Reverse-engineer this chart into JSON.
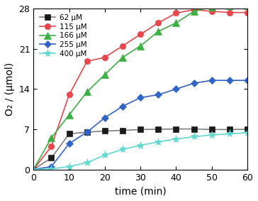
{
  "title": "",
  "xlabel": "time (min)",
  "ylabel": "O₂ / (μmol)",
  "xlim": [
    0,
    60
  ],
  "ylim": [
    0,
    28
  ],
  "yticks": [
    0,
    7,
    14,
    21,
    28
  ],
  "xticks": [
    0,
    10,
    20,
    30,
    40,
    50,
    60
  ],
  "series": [
    {
      "label": "62 μM",
      "color": "#808080",
      "marker": "s",
      "markercolor": "#1a1a1a",
      "x": [
        0,
        5,
        10,
        15,
        20,
        25,
        30,
        35,
        40,
        45,
        50,
        55,
        60
      ],
      "y": [
        0,
        2.0,
        6.2,
        6.5,
        6.7,
        6.8,
        6.95,
        7.0,
        7.05,
        7.05,
        6.95,
        6.95,
        7.0
      ]
    },
    {
      "label": "115 μM",
      "color": "#e8474c",
      "marker": "o",
      "markercolor": "#e8474c",
      "x": [
        0,
        5,
        10,
        15,
        20,
        25,
        30,
        35,
        40,
        45,
        50,
        55,
        60
      ],
      "y": [
        0,
        4.0,
        13.0,
        18.8,
        19.5,
        21.5,
        23.5,
        25.5,
        27.2,
        27.8,
        27.5,
        27.3,
        27.3
      ]
    },
    {
      "label": "166 μM",
      "color": "#3cb043",
      "marker": "^",
      "markercolor": "#3cb043",
      "x": [
        0,
        5,
        10,
        15,
        20,
        25,
        30,
        35,
        40,
        45,
        50,
        55,
        60
      ],
      "y": [
        0,
        5.5,
        9.5,
        13.5,
        16.5,
        19.5,
        21.5,
        24.0,
        25.5,
        27.5,
        28.3,
        28.5,
        28.5
      ]
    },
    {
      "label": "255 μM",
      "color": "#3264c8",
      "marker": "D",
      "markercolor": "#3264c8",
      "x": [
        0,
        5,
        10,
        15,
        20,
        25,
        30,
        35,
        40,
        45,
        50,
        55,
        60
      ],
      "y": [
        0,
        0.5,
        4.5,
        6.5,
        9.0,
        11.0,
        12.5,
        13.0,
        14.0,
        15.0,
        15.5,
        15.5,
        15.5
      ]
    },
    {
      "label": "400 μM",
      "color": "#60d8d0",
      "marker": "*",
      "markercolor": "#60d8d0",
      "x": [
        0,
        5,
        10,
        15,
        20,
        25,
        30,
        35,
        40,
        45,
        50,
        55,
        60
      ],
      "y": [
        0,
        0.1,
        0.5,
        1.2,
        2.5,
        3.5,
        4.2,
        4.8,
        5.3,
        5.7,
        6.0,
        6.2,
        6.4
      ]
    }
  ],
  "background_color": "#ffffff",
  "plot_bg_color": "#ffffff",
  "legend_fontsize": 7.5,
  "axis_fontsize": 10,
  "tick_fontsize": 9,
  "linewidth": 1.2,
  "markersize": 5.5
}
